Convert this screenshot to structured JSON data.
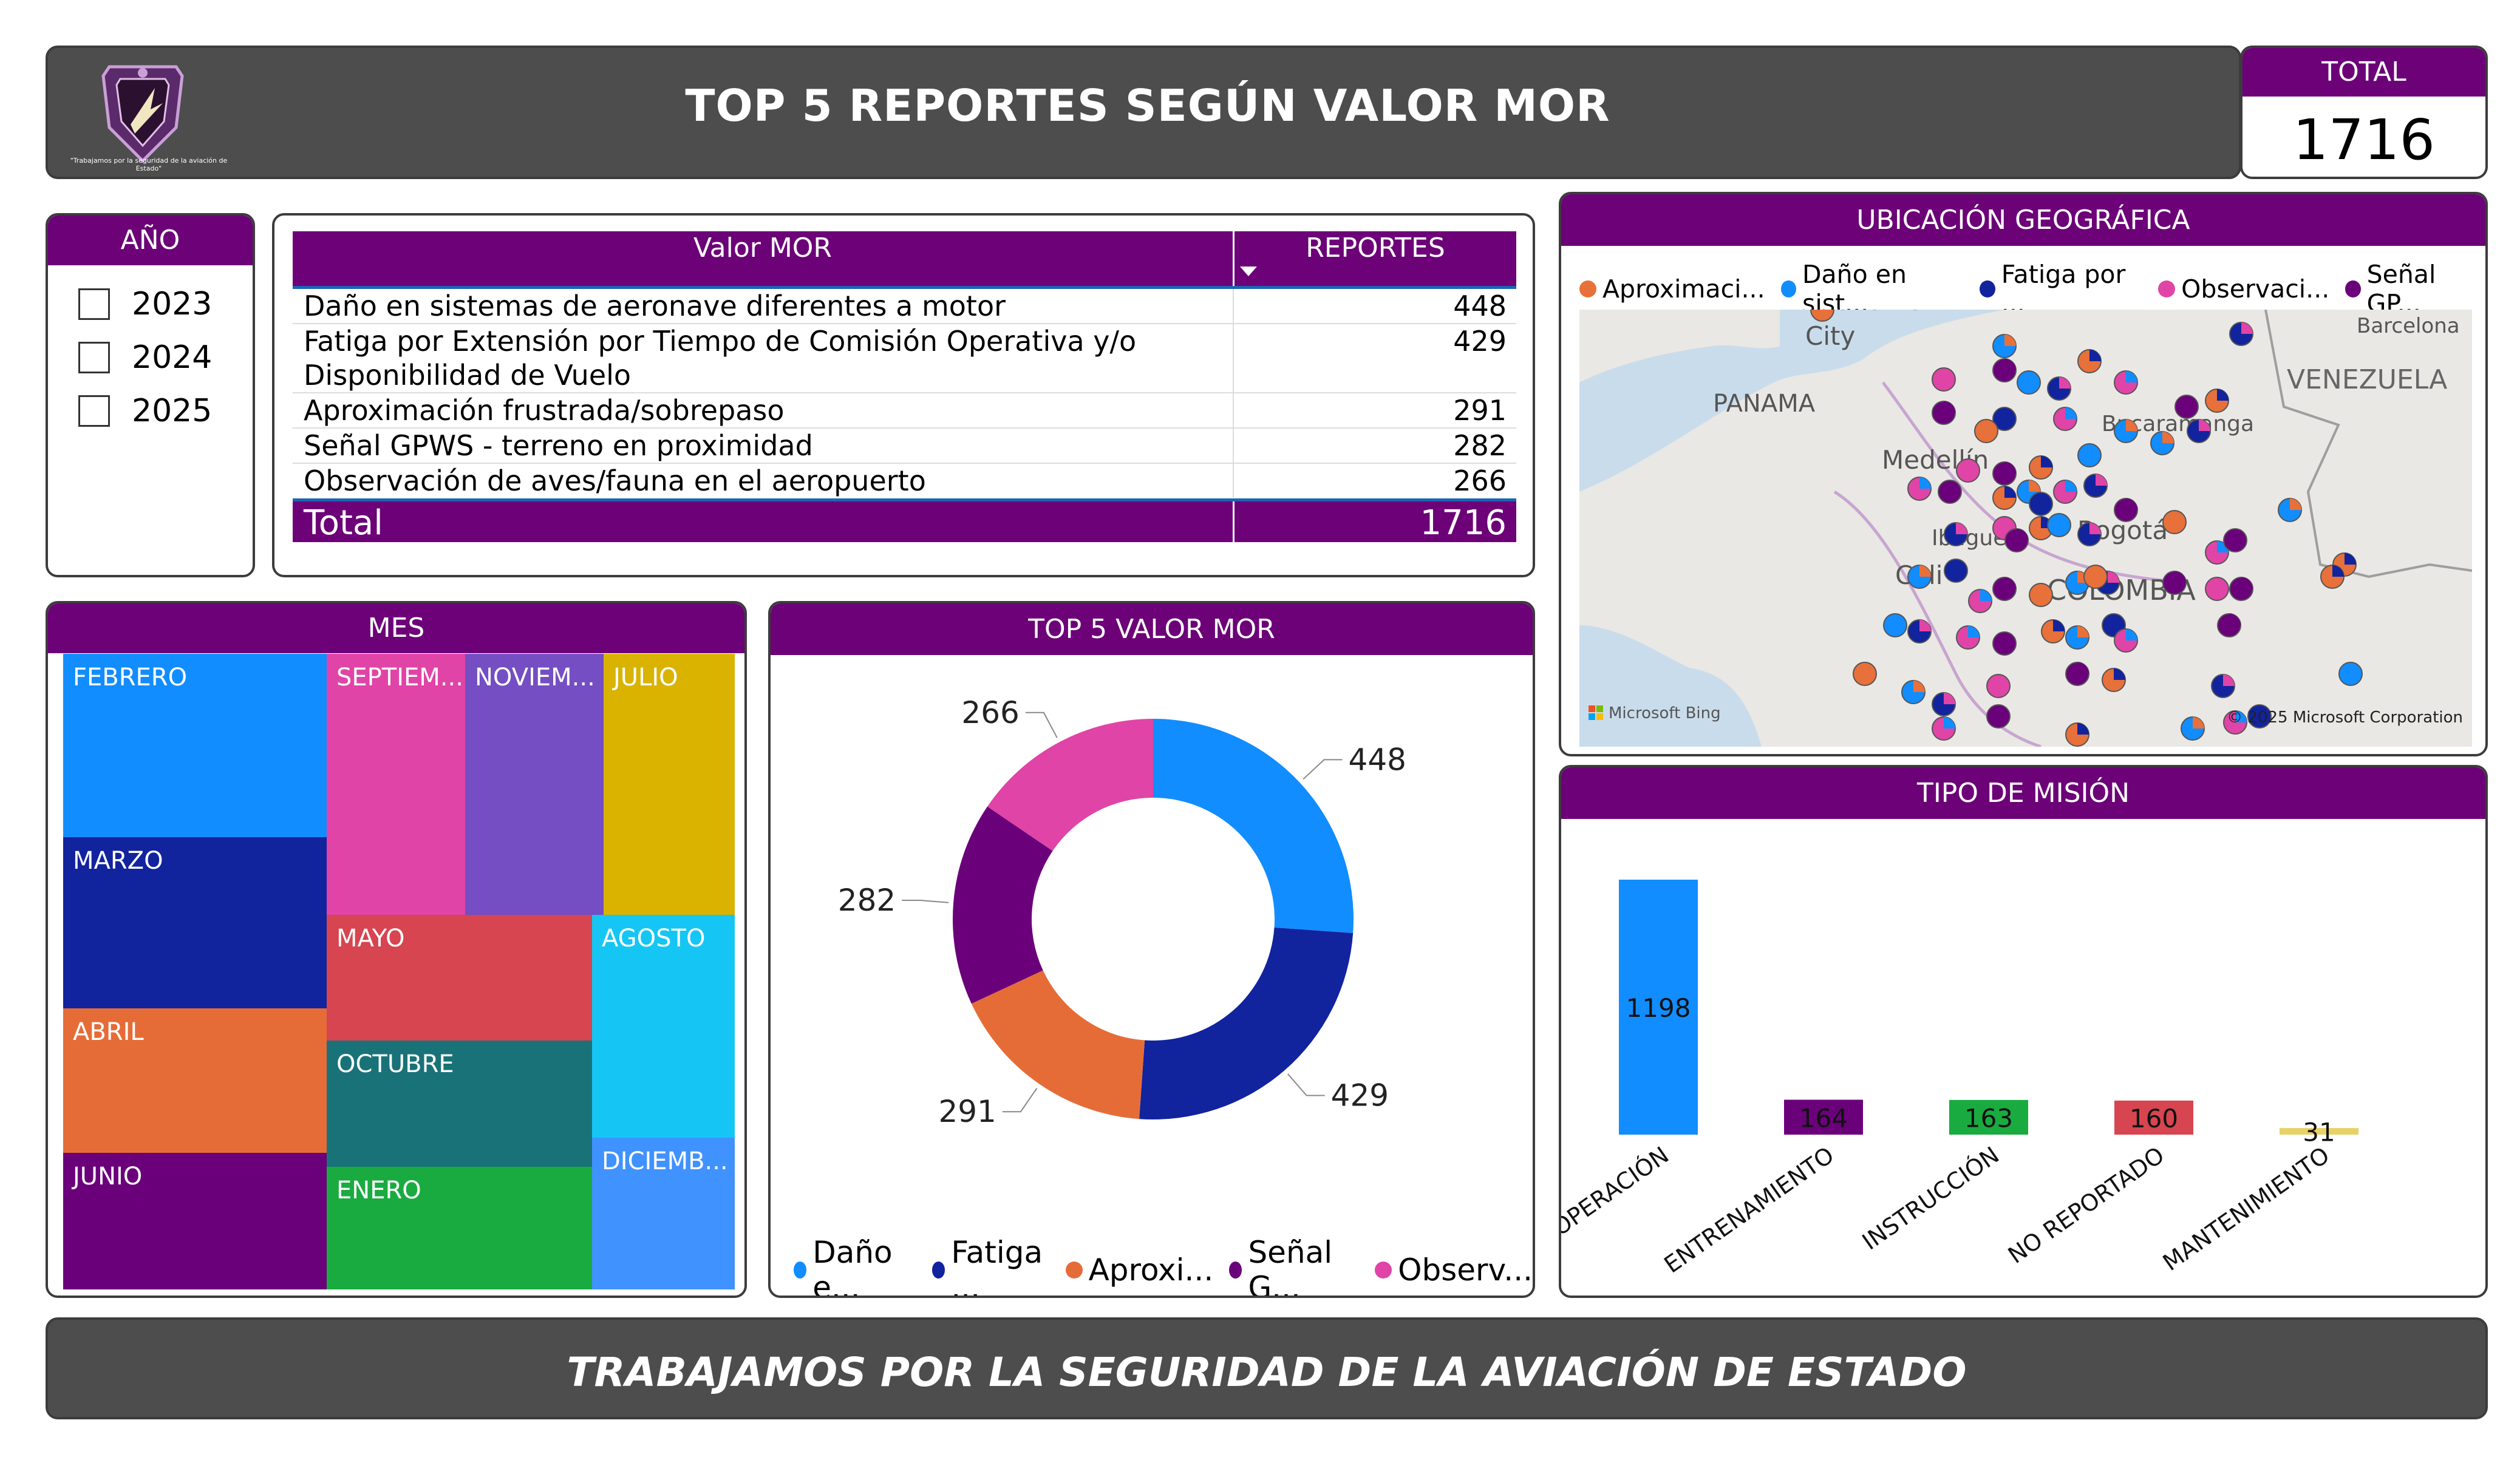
{
  "header": {
    "title": "TOP 5 REPORTES SEGÚN VALOR MOR",
    "logo_caption": "\"Trabajamos por la seguridad de la aviación de Estado\""
  },
  "total_card": {
    "label": "TOTAL",
    "value": "1716"
  },
  "year_slicer": {
    "title": "AÑO",
    "options": [
      {
        "label": "2023",
        "checked": false
      },
      {
        "label": "2024",
        "checked": false
      },
      {
        "label": "2025",
        "checked": false
      }
    ]
  },
  "mor_table": {
    "columns": [
      "Valor MOR",
      "REPORTES"
    ],
    "rows": [
      {
        "name": "Daño en sistemas de aeronave diferentes a motor",
        "value": "448"
      },
      {
        "name": "Fatiga por Extensión por Tiempo de Comisión Operativa y/o Disponibilidad de Vuelo",
        "value": "429"
      },
      {
        "name": "Aproximación frustrada/sobrepaso",
        "value": "291"
      },
      {
        "name": "Señal GPWS - terreno en proximidad",
        "value": "282"
      },
      {
        "name": "Observación de aves/fauna en el aeropuerto",
        "value": "266"
      }
    ],
    "total_label": "Total",
    "total_value": "1716"
  },
  "map": {
    "title": "UBICACIÓN GEOGRÁFICA",
    "legend": [
      {
        "label": "Aproximaci...",
        "color": "#e8703a"
      },
      {
        "label": "Daño en sist...",
        "color": "#118dff"
      },
      {
        "label": "Fatiga por ...",
        "color": "#12239e"
      },
      {
        "label": "Observaci...",
        "color": "#e044a7"
      },
      {
        "label": "Señal GP...",
        "color": "#6b007b"
      }
    ],
    "place_labels": [
      "Panama",
      "City",
      "PANAMA",
      "Medellín",
      "Ibagué",
      "Bogotá",
      "Cali",
      "COLOMBIA",
      "Bucaramanga",
      "Barcelona",
      "VENEZUELA"
    ],
    "attribution_left": "Microsoft Bing",
    "attribution_right": "© 2025 Microsoft Corporation"
  },
  "treemap": {
    "title": "MES",
    "tiles": [
      {
        "label": "FEBRERO",
        "color": "#118dff"
      },
      {
        "label": "MARZO",
        "color": "#12239e"
      },
      {
        "label": "ABRIL",
        "color": "#e66c37"
      },
      {
        "label": "JUNIO",
        "color": "#6b007b"
      },
      {
        "label": "SEPTIEM...",
        "color": "#e044a7"
      },
      {
        "label": "NOVIEM...",
        "color": "#744ec2"
      },
      {
        "label": "JULIO",
        "color": "#d9b300"
      },
      {
        "label": "MAYO",
        "color": "#d64550"
      },
      {
        "label": "AGOSTO",
        "color": "#15c6f4"
      },
      {
        "label": "OCTUBRE",
        "color": "#197278"
      },
      {
        "label": "ENERO",
        "color": "#1aab40"
      },
      {
        "label": "DICIEMB...",
        "color": "#4092ff"
      }
    ]
  },
  "donut": {
    "title": "TOP 5 VALOR MOR",
    "legend": [
      {
        "label": "Daño e...",
        "color": "#118dff"
      },
      {
        "label": "Fatiga ...",
        "color": "#12239e"
      },
      {
        "label": "Aproxi...",
        "color": "#e66c37"
      },
      {
        "label": "Señal G...",
        "color": "#6b007b"
      },
      {
        "label": "Observ...",
        "color": "#e044a7"
      }
    ]
  },
  "bar": {
    "title": "TIPO DE MISIÓN"
  },
  "chart_data": [
    {
      "type": "pie",
      "title": "TOP 5 VALOR MOR",
      "categories": [
        "Daño en sistemas de aeronave diferentes a motor",
        "Fatiga por Extensión por Tiempo de Comisión Operativa y/o Disponibilidad de Vuelo",
        "Aproximación frustrada/sobrepaso",
        "Señal GPWS - terreno en proximidad",
        "Observación de aves/fauna en el aeropuerto"
      ],
      "values": [
        448,
        429,
        291,
        282,
        266
      ],
      "colors": [
        "#118dff",
        "#12239e",
        "#e66c37",
        "#6b007b",
        "#e044a7"
      ],
      "donut": true,
      "legend": "bottom"
    },
    {
      "type": "bar",
      "title": "TIPO DE MISIÓN",
      "categories": [
        "OPERACIÓN",
        "ENTRENAMIENTO",
        "INSTRUCCIÓN",
        "NO REPORTADO",
        "MANTENIMIENTO"
      ],
      "values": [
        1198,
        164,
        163,
        160,
        31
      ],
      "colors": [
        "#118dff",
        "#6b007b",
        "#1aab40",
        "#d64550",
        "#e8d166"
      ],
      "grid": false
    }
  ],
  "footer": {
    "text": "TRABAJAMOS POR LA SEGURIDAD DE LA AVIACIÓN DE ESTADO"
  }
}
